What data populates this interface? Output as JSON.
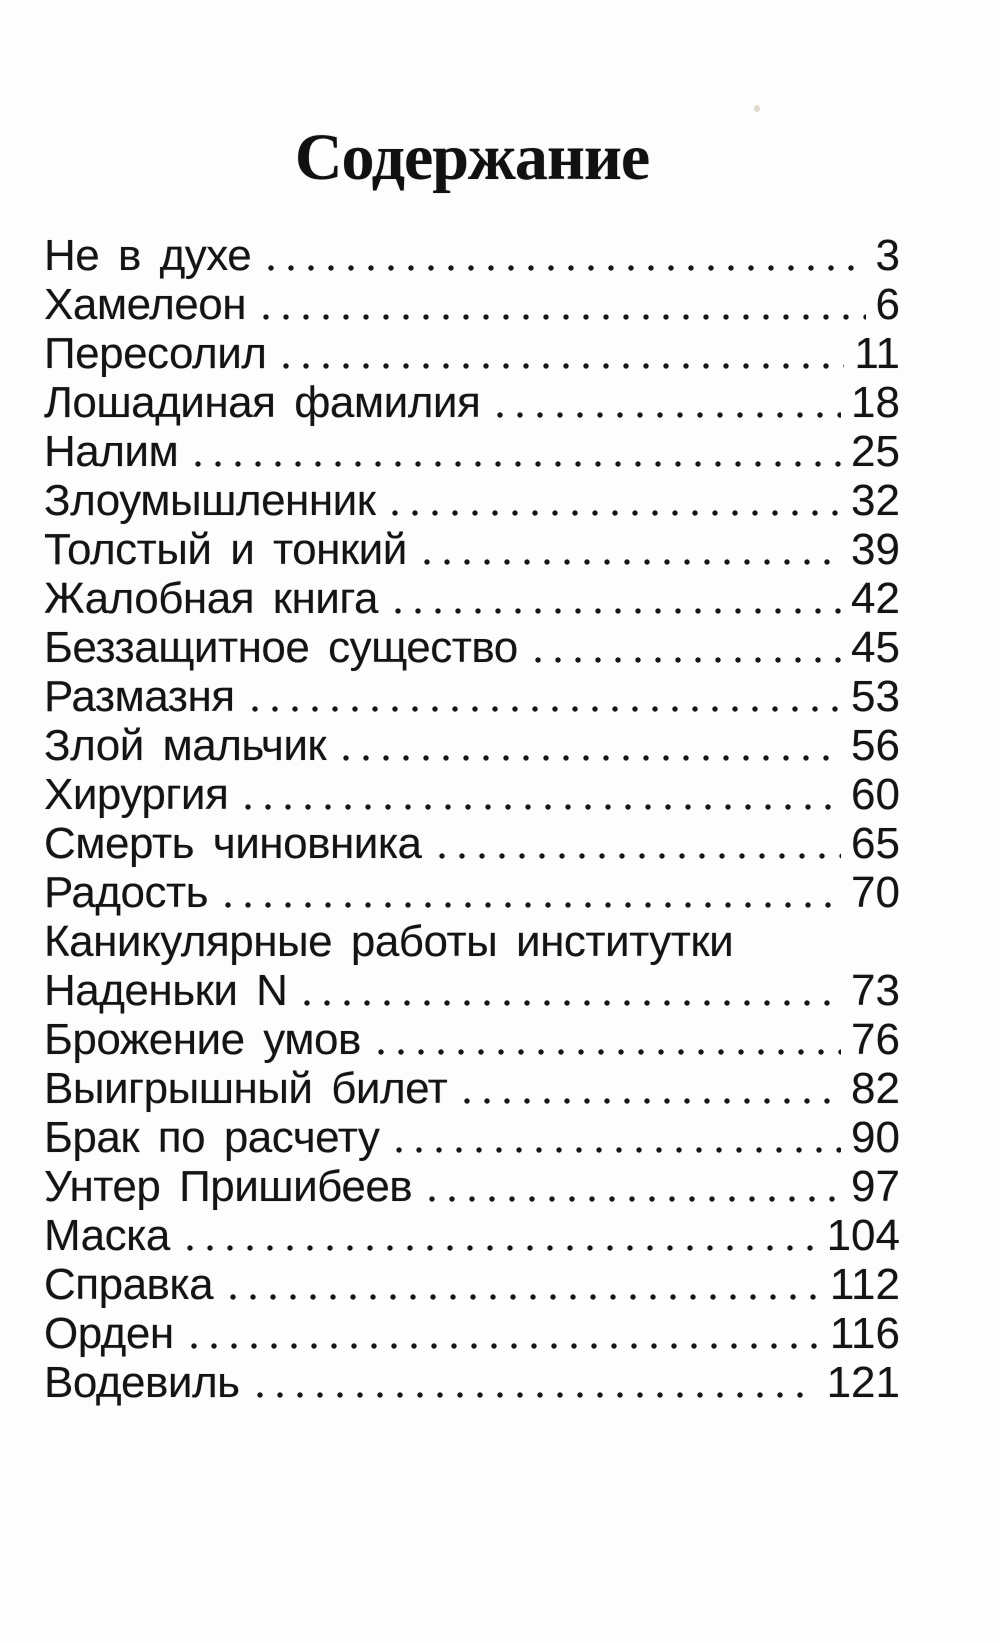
{
  "page_title": "Содержание",
  "colors": {
    "ink": "#141414",
    "paper": "#fdfdfd"
  },
  "toc": {
    "entries": [
      {
        "title": "Не в духе",
        "page": "3"
      },
      {
        "title": "Хамелеон",
        "page": "6"
      },
      {
        "title": "Пересолил",
        "page": "11"
      },
      {
        "title": "Лошадиная фамилия",
        "page": "18"
      },
      {
        "title": "Налим",
        "page": "25"
      },
      {
        "title": "Злоумышленник",
        "page": "32"
      },
      {
        "title": "Толстый и тонкий",
        "page": "39"
      },
      {
        "title": "Жалобная книга",
        "page": "42"
      },
      {
        "title": "Беззащитное существо",
        "page": "45"
      },
      {
        "title": "Размазня",
        "page": "53"
      },
      {
        "title": "Злой мальчик",
        "page": "56"
      },
      {
        "title": "Хирургия",
        "page": "60"
      },
      {
        "title": "Смерть чиновника",
        "page": "65"
      },
      {
        "title": "Радость",
        "page": "70"
      },
      {
        "title": "Каникулярные работы институтки",
        "page": null
      },
      {
        "title": "Наденьки N",
        "page": "73"
      },
      {
        "title": "Брожение умов",
        "page": "76"
      },
      {
        "title": "Выигрышный билет",
        "page": "82"
      },
      {
        "title": "Брак по расчету",
        "page": "90"
      },
      {
        "title": "Унтер Пришибеев",
        "page": "97"
      },
      {
        "title": "Маска",
        "page": "104"
      },
      {
        "title": "Справка",
        "page": "112"
      },
      {
        "title": "Орден",
        "page": "116"
      },
      {
        "title": "Водевиль",
        "page": "121"
      }
    ]
  }
}
